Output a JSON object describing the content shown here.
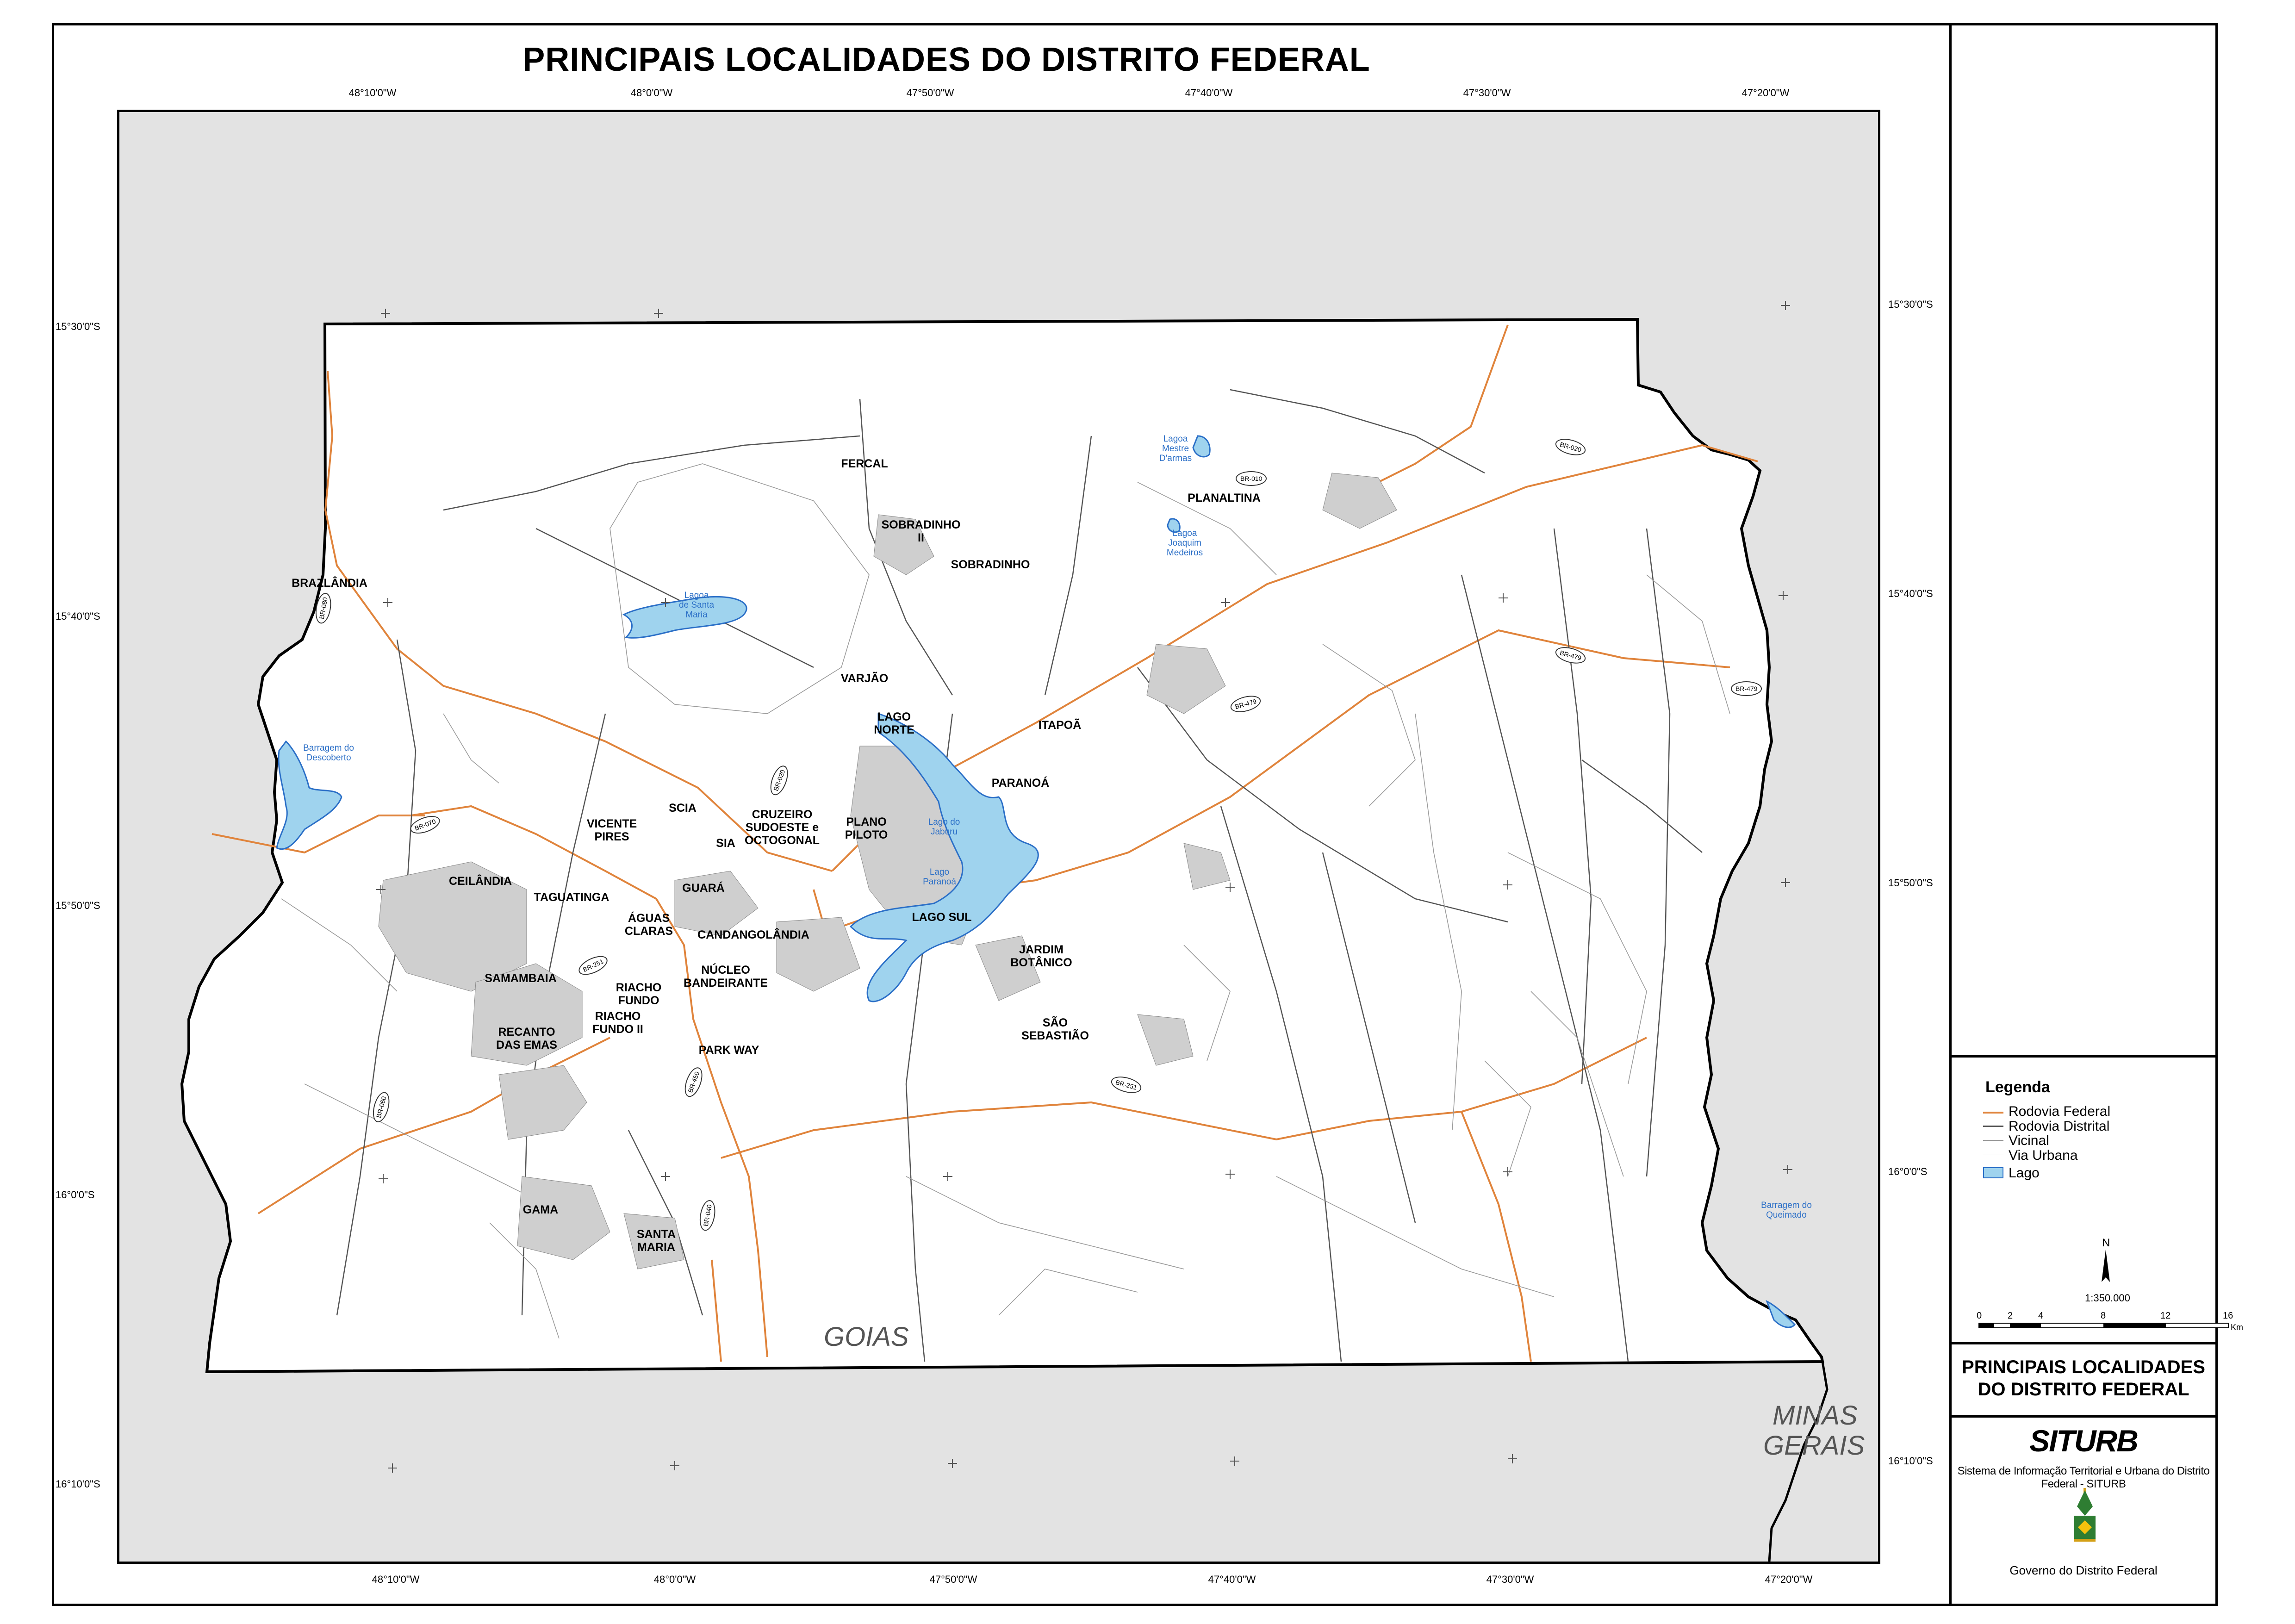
{
  "title": "PRINCIPAIS LOCALIDADES DO DISTRITO FEDERAL",
  "colors": {
    "federal_road": "#e0843c",
    "district_road": "#555555",
    "vicinal": "#888888",
    "lake_fill": "#9fd3ee",
    "lake_stroke": "#2b6fc7",
    "outside_fill": "#e3e3e3",
    "district_fill": "#ffffff"
  },
  "longitudes": [
    "48°10'0\"W",
    "48°0'0\"W",
    "47°50'0\"W",
    "47°40'0\"W",
    "47°30'0\"W",
    "47°20'0\"W"
  ],
  "latitudes_left": [
    "15°30'0\"S",
    "15°40'0\"S",
    "15°50'0\"S",
    "16°0'0\"S",
    "16°10'0\"S"
  ],
  "latitudes_right": [
    "15°30'0\"S",
    "15°40'0\"S",
    "15°50'0\"S",
    "16°0'0\"S",
    "16°10'0\"S"
  ],
  "regions": {
    "goias": "GOIAS",
    "minas_line1": "MINAS",
    "minas_line2": "GERAIS"
  },
  "places": {
    "fercal": "FERCAL",
    "sobradinho_ii_1": "SOBRADINHO",
    "sobradinho_ii_2": "II",
    "sobradinho": "SOBRADINHO",
    "planaltina": "PLANALTINA",
    "brazlandia": "BRAZLÂNDIA",
    "varjao": "VARJÃO",
    "lago_norte_1": "LAGO",
    "lago_norte_2": "NORTE",
    "itapoa": "ITAPOÃ",
    "paranoa": "PARANOÁ",
    "scia": "SCIA",
    "vicente_pires_1": "VICENTE",
    "vicente_pires_2": "PIRES",
    "cruzeiro_1": "CRUZEIRO",
    "cruzeiro_2": "SUDOESTE e",
    "cruzeiro_3": "OCTOGONAL",
    "sia": "SIA",
    "plano_piloto_1": "PLANO",
    "plano_piloto_2": "PILOTO",
    "ceilandia": "CEILÂNDIA",
    "taguatinga": "TAGUATINGA",
    "guara": "GUARÁ",
    "aguas_claras_1": "ÁGUAS",
    "aguas_claras_2": "CLARAS",
    "candangolandia": "CANDANGOLÂNDIA",
    "lago_sul": "LAGO SUL",
    "jardim_botanico_1": "JARDIM",
    "jardim_botanico_2": "BOTÂNICO",
    "samambaia": "SAMAMBAIA",
    "riacho_fundo_1": "RIACHO",
    "riacho_fundo_2": "FUNDO",
    "nucleo_bandeirante_1": "NÚCLEO",
    "nucleo_bandeirante_2": "BANDEIRANTE",
    "recanto_1": "RECANTO",
    "recanto_2": "DAS EMAS",
    "riacho_fundo_ii_1": "RIACHO",
    "riacho_fundo_ii_2": "FUNDO II",
    "sao_sebastiao_1": "SÃO",
    "sao_sebastiao_2": "SEBASTIÃO",
    "park_way": "PARK WAY",
    "gama": "GAMA",
    "santa_maria_1": "SANTA",
    "santa_maria_2": "MARIA"
  },
  "lakes": {
    "santa_maria_1": "Lagoa",
    "santa_maria_2": "de Santa",
    "santa_maria_3": "Maria",
    "mestre_darmas_1": "Lagoa",
    "mestre_darmas_2": "Mestre",
    "mestre_darmas_3": "D'armas",
    "joaquim_medeiros_1": "Lagoa",
    "joaquim_medeiros_2": "Joaquim",
    "joaquim_medeiros_3": "Medeiros",
    "descoberto_1": "Barragem do",
    "descoberto_2": "Descoberto",
    "jaburu_1": "Lago do",
    "jaburu_2": "Jaburu",
    "paranoa_1": "Lago",
    "paranoa_2": "Paranoá",
    "queimado_1": "Barragem do",
    "queimado_2": "Queimado"
  },
  "roads": {
    "br080": "BR-080",
    "br010": "BR-010",
    "br020": "BR-020",
    "br479a": "BR-479",
    "br479b": "BR-479",
    "br479c": "BR-479",
    "br020b": "BR-020",
    "br070": "BR-070",
    "br251a": "BR-251",
    "br251b": "BR-251",
    "br060": "BR-060",
    "br450": "BR-450",
    "br040": "BR-040"
  },
  "legend": {
    "title": "Legenda",
    "items": [
      "Rodovia Federal",
      "Rodovia Distrital",
      "Vicinal",
      "Via Urbana"
    ],
    "lake": "Lago"
  },
  "north": "N",
  "scale": {
    "ratio": "1:350.000",
    "ticks": [
      "0",
      "2",
      "4",
      "8",
      "12",
      "16"
    ],
    "unit": "Km"
  },
  "sidebar_title_1": "PRINCIPAIS LOCALIDADES",
  "sidebar_title_2": "DO DISTRITO FEDERAL",
  "logo": "SITURB",
  "logo_subtitle": "Sistema de Informação Territorial e Urbana do Distrito Federal - SITURB",
  "government": "Governo do Distrito Federal"
}
